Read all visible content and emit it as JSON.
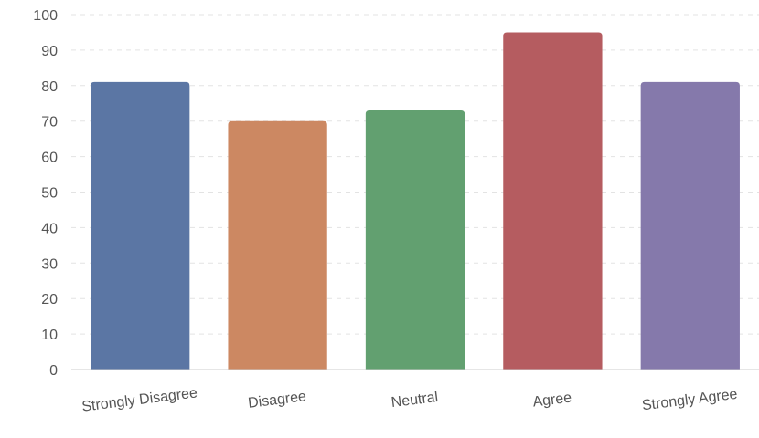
{
  "chart_data": {
    "type": "bar",
    "categories": [
      "Strongly Disagree",
      "Disagree",
      "Neutral",
      "Agree",
      "Strongly Agree"
    ],
    "values": [
      81,
      70,
      73,
      95,
      81
    ],
    "colors": [
      "#5b76a4",
      "#cc8862",
      "#62a070",
      "#b55c60",
      "#8579ab"
    ],
    "ylim": [
      0,
      100
    ],
    "yticks": [
      0,
      10,
      20,
      30,
      40,
      50,
      60,
      70,
      80,
      90,
      100
    ],
    "grid": true,
    "title": "",
    "xlabel": "",
    "ylabel": ""
  }
}
